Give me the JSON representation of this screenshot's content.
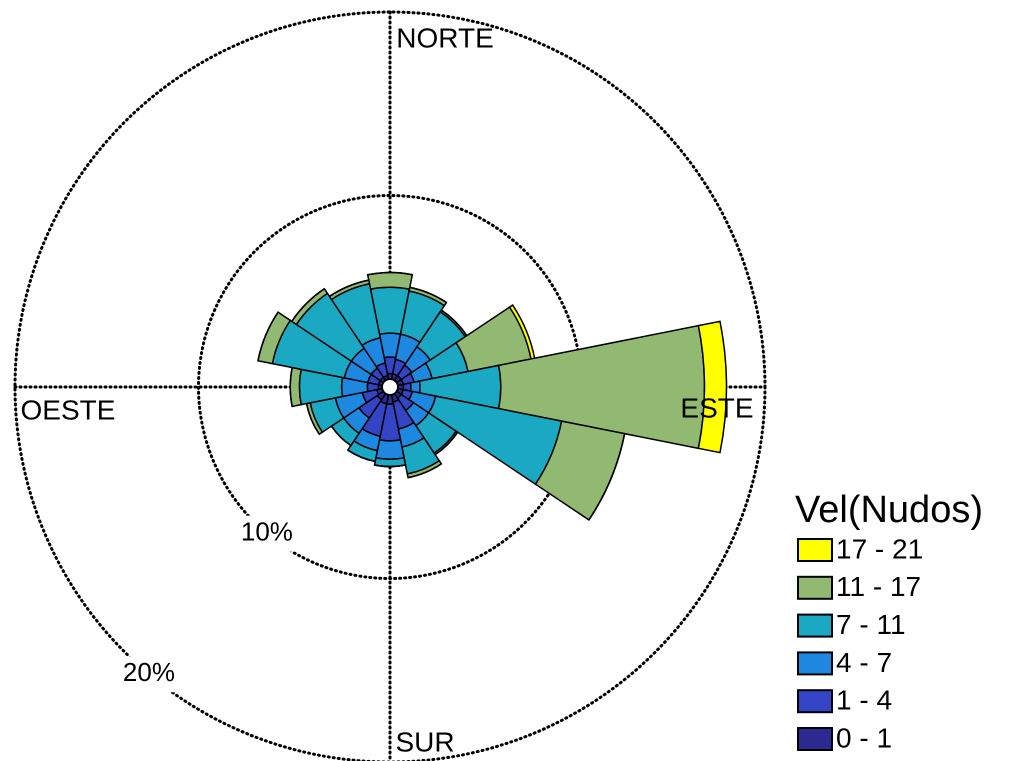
{
  "chart_data": {
    "type": "windrose",
    "categories": [
      "NORTE",
      null,
      null,
      null,
      "ESTE",
      null,
      null,
      null,
      "SUR",
      null,
      null,
      null,
      "OESTE",
      null,
      null,
      null
    ],
    "rlim": [
      0,
      20
    ],
    "rticks": [
      {
        "value": 10,
        "label": "10%"
      },
      {
        "value": 20,
        "label": "20%"
      }
    ],
    "legend_title": "Vel(Nudos)",
    "legend_position": "right",
    "series": [
      {
        "name": "0 - 1",
        "color": "#2b2b8f",
        "values": [
          0.3,
          0.3,
          0.3,
          0.3,
          0.3,
          0.3,
          0.3,
          0.4,
          0.5,
          0.5,
          0.4,
          0.3,
          0.2,
          0.2,
          0.2,
          0.2
        ]
      },
      {
        "name": "1 - 4",
        "color": "#3344c4",
        "values": [
          0.9,
          0.8,
          0.7,
          0.6,
          0.4,
          0.5,
          0.8,
          1.5,
          2.0,
          1.8,
          1.2,
          0.8,
          0.6,
          0.6,
          0.6,
          0.7
        ]
      },
      {
        "name": "4 - 7",
        "color": "#1e88e0",
        "values": [
          1.3,
          1.4,
          1.2,
          1.0,
          0.5,
          1.3,
          1.0,
          1.0,
          1.0,
          0.8,
          1.0,
          1.5,
          1.4,
          1.3,
          1.3,
          1.4
        ]
      },
      {
        "name": "7 - 11",
        "color": "#1aa8c2",
        "values": [
          2.5,
          2.4,
          2.3,
          2.0,
          4.4,
          7.0,
          1.8,
          1.5,
          0.4,
          0.6,
          0.8,
          1.4,
          2.3,
          4.0,
          3.6,
          3.0
        ]
      },
      {
        "name": "11 - 17",
        "color": "#92b972",
        "values": [
          0.8,
          0.2,
          0.1,
          3.5,
          11.1,
          3.5,
          0.1,
          0.2,
          0,
          0,
          0,
          0.2,
          0.5,
          0.8,
          0.3,
          0.2
        ]
      },
      {
        "name": "17 - 21",
        "color": "#ffff00",
        "values": [
          0,
          0,
          0,
          0.2,
          1.2,
          0,
          0,
          0,
          0,
          0,
          0,
          0,
          0,
          0,
          0,
          0
        ]
      }
    ]
  }
}
